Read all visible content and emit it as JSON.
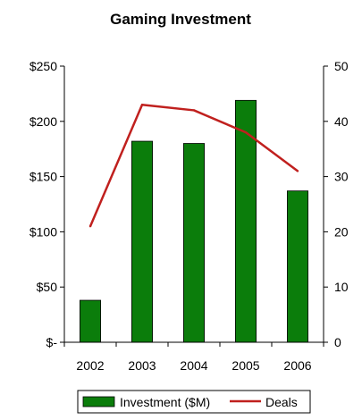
{
  "chart_data": {
    "type": "bar",
    "title": "Gaming Investment",
    "categories": [
      "2002",
      "2003",
      "2004",
      "2005",
      "2006"
    ],
    "series": [
      {
        "name": "Investment ($M)",
        "type": "bar",
        "axis": "left",
        "color": "#0b7d0b",
        "values": [
          38,
          182,
          180,
          219,
          137
        ]
      },
      {
        "name": "Deals",
        "type": "line",
        "axis": "right",
        "color": "#c0201e",
        "values": [
          21,
          43,
          42,
          38,
          31
        ]
      }
    ],
    "ylim_left": [
      0,
      250
    ],
    "ylim_right": [
      0,
      50
    ],
    "yticks_left": [
      "$-",
      "$50",
      "$100",
      "$150",
      "$200",
      "$250"
    ],
    "yticks_right": [
      "0",
      "10",
      "20",
      "30",
      "40",
      "50"
    ],
    "xlabel": "",
    "ylabel": "",
    "grid": false,
    "legend": "bottom"
  }
}
